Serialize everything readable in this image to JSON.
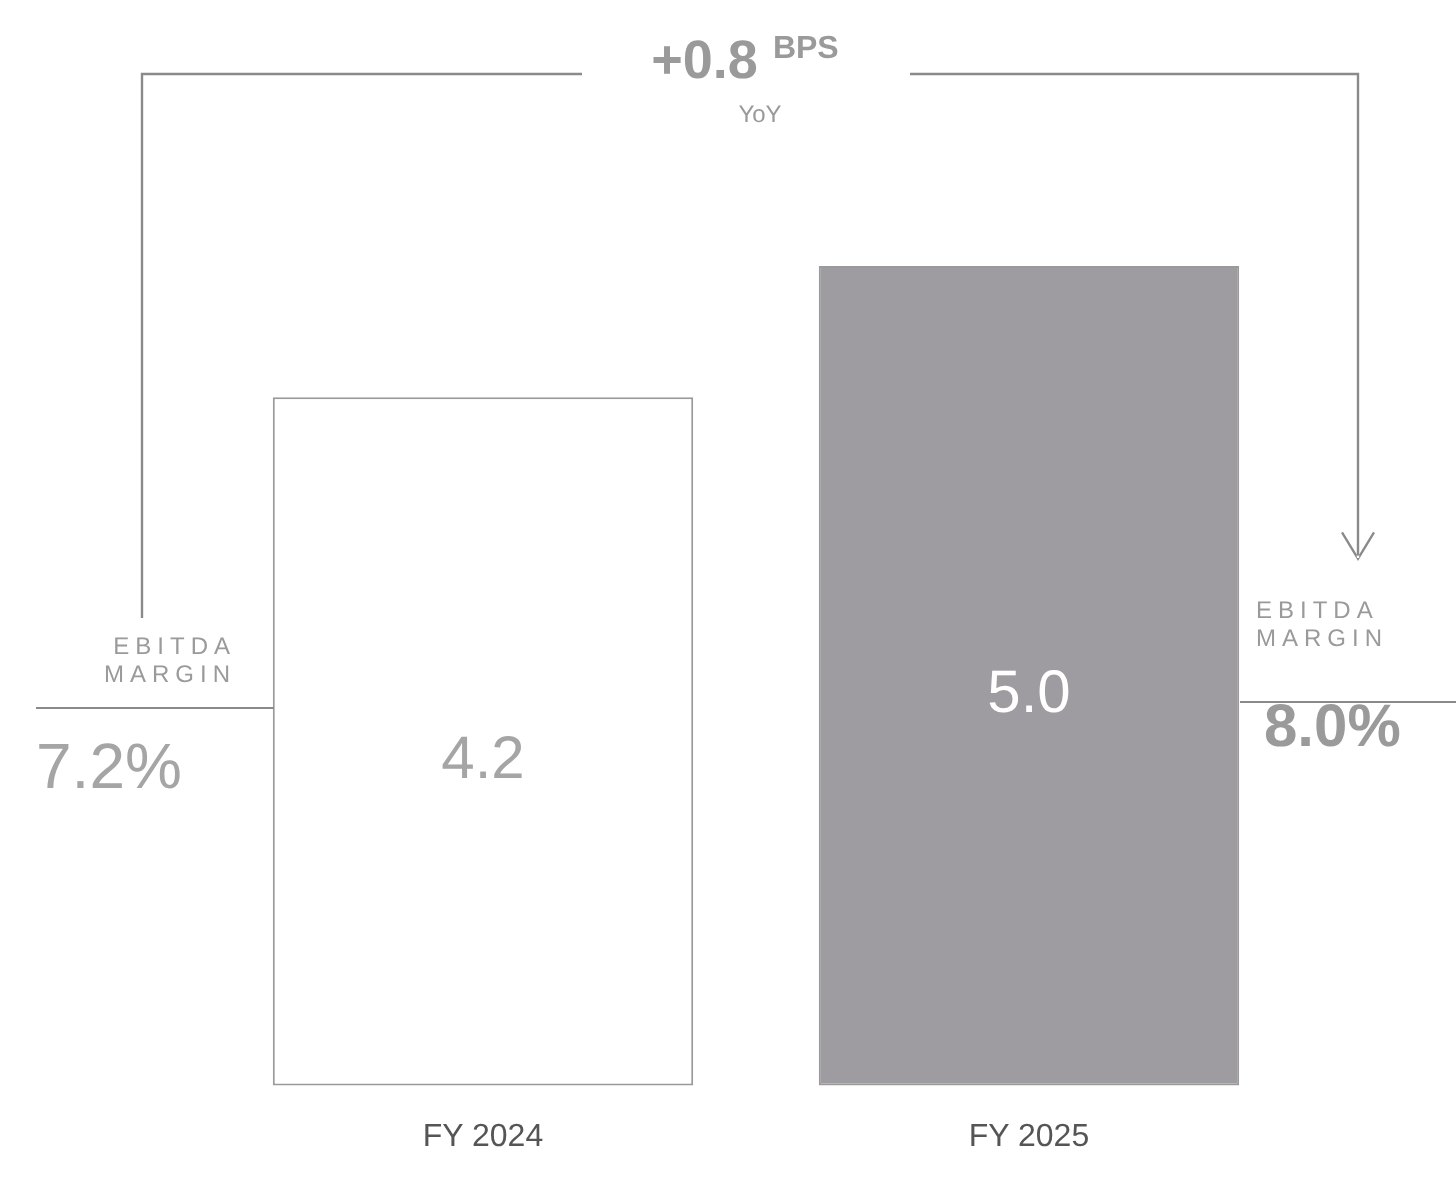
{
  "chart_data": {
    "type": "bar",
    "categories": [
      "FY 2024",
      "FY 2025"
    ],
    "values": [
      4.2,
      5.0
    ],
    "colors": [
      "#ffffff",
      "#9e9ca0"
    ],
    "value_labels": [
      "4.2",
      "5.0"
    ],
    "ylim": [
      0,
      5
    ],
    "tick_labels": "x",
    "grid": false,
    "legend": false,
    "annotations": [
      "+0.8 $^{BPS}$",
      "YoY",
      "EBITDA MARGIN",
      "7.2%",
      "EBITDA MARGIN",
      "8.0%"
    ]
  }
}
